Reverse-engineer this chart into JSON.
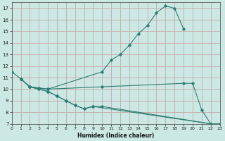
{
  "xlabel": "Humidex (Indice chaleur)",
  "bg_color": "#cce8e4",
  "line_color": "#2e7d72",
  "grid_color_major": "#c8a8a8",
  "grid_color_minor": "#ddd0d0",
  "xlim": [
    0,
    23
  ],
  "ylim": [
    7,
    17.5
  ],
  "xticks": [
    0,
    1,
    2,
    3,
    4,
    5,
    6,
    7,
    8,
    9,
    10,
    11,
    12,
    13,
    14,
    15,
    16,
    17,
    18,
    19,
    20,
    21,
    22,
    23
  ],
  "yticks": [
    7,
    8,
    9,
    10,
    11,
    12,
    13,
    14,
    15,
    16,
    17
  ],
  "lines": [
    {
      "x": [
        0,
        1,
        2,
        3,
        4,
        10,
        11,
        12,
        13,
        14,
        15,
        16,
        17,
        18,
        19
      ],
      "y": [
        11.5,
        10.9,
        10.2,
        10.1,
        10.0,
        11.5,
        12.5,
        13.0,
        13.8,
        14.8,
        15.5,
        16.6,
        17.2,
        17.0,
        15.2
      ]
    },
    {
      "x": [
        1,
        2,
        3,
        4,
        10,
        19,
        20,
        21,
        22,
        23
      ],
      "y": [
        10.9,
        10.2,
        10.1,
        10.0,
        10.2,
        10.5,
        10.5,
        8.2,
        7.0,
        7.0
      ]
    },
    {
      "x": [
        1,
        2,
        3,
        4,
        5,
        6,
        7,
        8,
        9,
        10,
        22,
        23
      ],
      "y": [
        10.9,
        10.2,
        10.0,
        9.8,
        9.4,
        9.0,
        8.6,
        8.3,
        8.5,
        8.5,
        7.0,
        7.0
      ]
    },
    {
      "x": [
        1,
        2,
        3,
        4,
        5,
        6,
        7,
        8,
        9,
        22,
        23
      ],
      "y": [
        10.9,
        10.2,
        10.0,
        9.8,
        9.4,
        9.0,
        8.6,
        8.3,
        8.5,
        7.0,
        7.0
      ]
    }
  ]
}
